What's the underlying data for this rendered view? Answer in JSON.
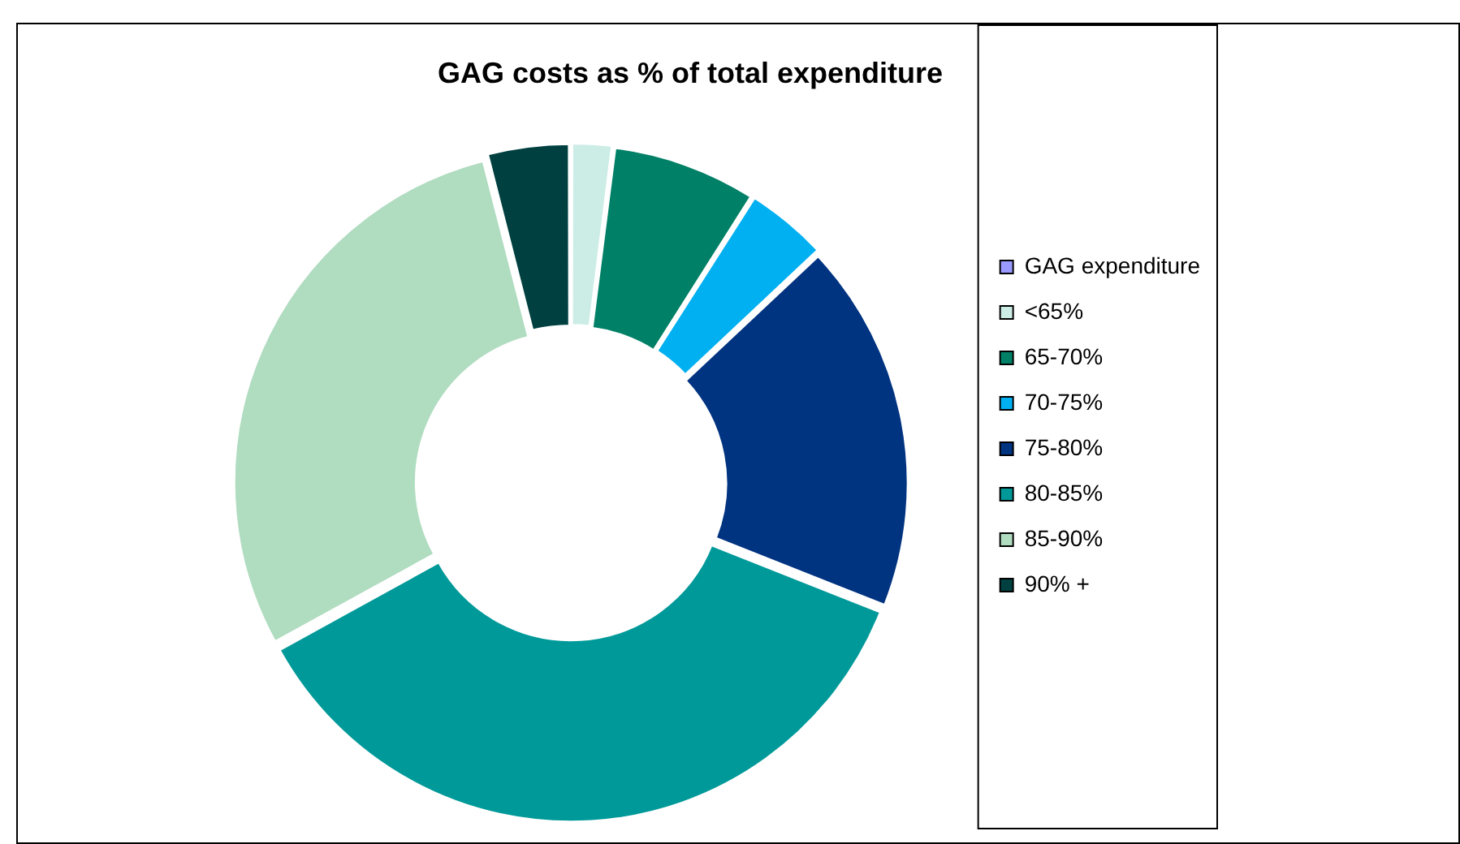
{
  "chart_data": {
    "type": "donut",
    "title": "GAG costs as % of total expenditure",
    "categories": [
      "GAG expenditure",
      "<65%",
      "65-70%",
      "70-75%",
      "75-80%",
      "80-85%",
      "85-90%",
      "90% +"
    ],
    "values": [
      0,
      2,
      7,
      4,
      18,
      36,
      29,
      4
    ],
    "colors": [
      "#9999ff",
      "#ccece6",
      "#008066",
      "#00b0f0",
      "#003380",
      "#009999",
      "#b0dcc0",
      "#004040"
    ],
    "legend": "right"
  }
}
